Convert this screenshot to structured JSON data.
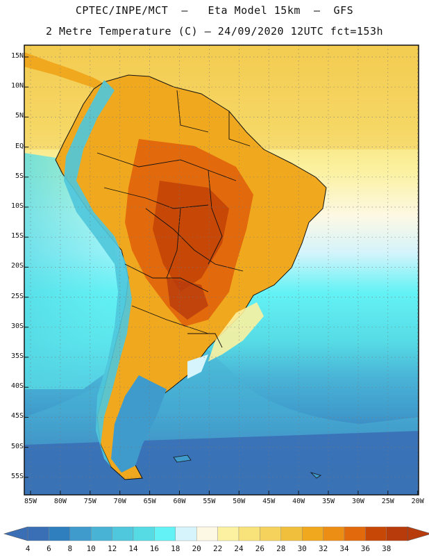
{
  "header": {
    "line1": "CPTEC/INPE/MCT  –   Eta Model 15km  –  GFS",
    "line2": "2 Metre Temperature (C) – 24/09/2020 12UTC fct=153h"
  },
  "axes": {
    "lat_labels": [
      "15N",
      "10N",
      "5N",
      "EQ",
      "5S",
      "10S",
      "15S",
      "20S",
      "25S",
      "30S",
      "35S",
      "40S",
      "45S",
      "50S",
      "55S"
    ],
    "lon_labels": [
      "85W",
      "80W",
      "75W",
      "70W",
      "65W",
      "60W",
      "55W",
      "50W",
      "45W",
      "40W",
      "35W",
      "30W",
      "25W",
      "20W"
    ]
  },
  "colorbar": {
    "labels": [
      "4",
      "6",
      "8",
      "10",
      "12",
      "14",
      "16",
      "18",
      "20",
      "22",
      "24",
      "26",
      "28",
      "30",
      "32",
      "34",
      "36",
      "38"
    ],
    "colors": [
      "#3a6fb5",
      "#2f7fbf",
      "#3f9bcc",
      "#49b3d6",
      "#4fc7dc",
      "#56dbe5",
      "#63f2f5",
      "#d5f4fb",
      "#fdf8e4",
      "#fbf1a0",
      "#f8e37a",
      "#f5d25c",
      "#f0bf3c",
      "#f0a81e",
      "#ec8d14",
      "#e26a0c",
      "#c74707",
      "#b83b0c"
    ]
  }
}
